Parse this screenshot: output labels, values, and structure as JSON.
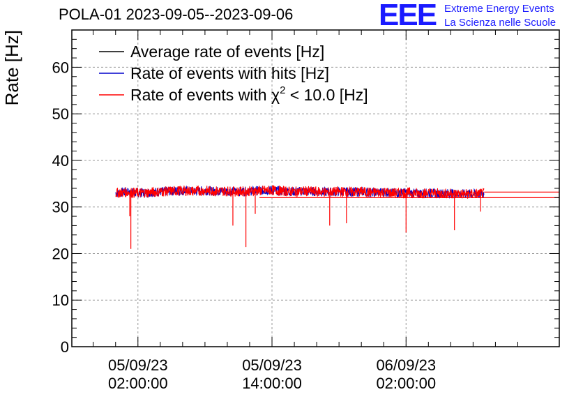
{
  "header": {
    "title": "POLA-01 2023-09-05--2023-09-06",
    "logo": "EEE",
    "logo_line1": "Extreme Energy Events",
    "logo_line2": "La Scienza nelle Scuole"
  },
  "colors": {
    "average": "#000000",
    "hits": "#0000cc",
    "chi2": "#ff0000",
    "brand": "#1a1aff",
    "grid": "#999999"
  },
  "chart_data": {
    "type": "line",
    "ylabel": "Rate [Hz]",
    "xlabel": "",
    "ylim": [
      0,
      68
    ],
    "xlim": [
      "2023-09-04 20:05",
      "2023-09-06 15:43"
    ],
    "grid": true,
    "legend_placement": "top-left",
    "yticks": [
      0,
      10,
      20,
      30,
      40,
      50,
      60
    ],
    "xticks": [
      {
        "time": "2023-09-05 02:00",
        "line1": "05/09/23",
        "line2": "02:00:00"
      },
      {
        "time": "2023-09-05 14:00",
        "line1": "05/09/23",
        "line2": "14:00:00"
      },
      {
        "time": "2023-09-06 02:00",
        "line1": "06/09/23",
        "line2": "02:00:00"
      }
    ],
    "legend": [
      {
        "label": "Average rate of events [Hz]"
      },
      {
        "label": "Rate of events with hits [Hz]"
      },
      {
        "label_pre": "Rate of events with ",
        "label_sym": "χ",
        "label_sup": "2",
        "label_post": " < 10.0 [Hz]"
      }
    ],
    "series": [
      {
        "name": "Rate of events with hits [Hz]",
        "x": [
          "2023-09-05 00:00",
          "2023-09-05 01:00",
          "2023-09-05 02:00",
          "2023-09-05 03:00",
          "2023-09-05 04:00",
          "2023-09-05 05:00",
          "2023-09-05 06:00",
          "2023-09-05 07:00",
          "2023-09-05 08:00",
          "2023-09-05 09:00",
          "2023-09-05 10:00",
          "2023-09-05 11:00",
          "2023-09-05 12:00",
          "2023-09-05 13:00",
          "2023-09-05 14:00",
          "2023-09-05 15:00",
          "2023-09-05 16:00",
          "2023-09-05 17:00",
          "2023-09-05 18:00",
          "2023-09-05 19:00",
          "2023-09-05 20:00",
          "2023-09-05 21:00",
          "2023-09-05 22:00",
          "2023-09-05 23:00",
          "2023-09-06 00:00",
          "2023-09-06 01:00",
          "2023-09-06 02:00",
          "2023-09-06 03:00",
          "2023-09-06 04:00",
          "2023-09-06 05:00",
          "2023-09-06 06:00",
          "2023-09-06 07:00",
          "2023-09-06 08:00",
          "2023-09-06 09:00"
        ],
        "y": [
          33.0,
          33.2,
          33.0,
          33.1,
          33.3,
          33.4,
          33.5,
          33.4,
          33.5,
          33.4,
          33.4,
          33.3,
          33.4,
          33.5,
          33.6,
          33.4,
          33.3,
          33.4,
          33.3,
          33.2,
          33.3,
          33.2,
          33.3,
          33.1,
          33.2,
          33.0,
          33.1,
          32.9,
          33.0,
          32.9,
          32.9,
          32.8,
          32.8,
          32.9
        ]
      },
      {
        "name": "Rate of events with χ2 < 10.0 [Hz]",
        "x": [
          "2023-09-05 00:00",
          "2023-09-05 01:00",
          "2023-09-05 02:00",
          "2023-09-05 03:00",
          "2023-09-05 04:00",
          "2023-09-05 05:00",
          "2023-09-05 06:00",
          "2023-09-05 07:00",
          "2023-09-05 08:00",
          "2023-09-05 09:00",
          "2023-09-05 10:00",
          "2023-09-05 11:00",
          "2023-09-05 12:00",
          "2023-09-05 13:00",
          "2023-09-05 14:00",
          "2023-09-05 15:00",
          "2023-09-05 16:00",
          "2023-09-05 17:00",
          "2023-09-05 18:00",
          "2023-09-05 19:00",
          "2023-09-05 20:00",
          "2023-09-05 21:00",
          "2023-09-05 22:00",
          "2023-09-05 23:00",
          "2023-09-06 00:00",
          "2023-09-06 01:00",
          "2023-09-06 02:00",
          "2023-09-06 03:00",
          "2023-09-06 04:00",
          "2023-09-06 05:00",
          "2023-09-06 06:00",
          "2023-09-06 07:00",
          "2023-09-06 08:00",
          "2023-09-06 09:00"
        ],
        "y": [
          33.0,
          33.2,
          33.0,
          33.1,
          33.3,
          33.4,
          33.5,
          33.4,
          33.5,
          33.4,
          33.4,
          33.3,
          33.4,
          33.5,
          33.6,
          33.4,
          33.3,
          33.4,
          33.3,
          33.2,
          33.3,
          33.2,
          33.3,
          33.1,
          33.2,
          33.0,
          33.1,
          32.9,
          33.0,
          32.9,
          32.9,
          32.8,
          32.8,
          32.9
        ]
      },
      {
        "name": "Rate of events with χ2 < 10.0 [Hz] — dips",
        "x": [
          "2023-09-05 01:16",
          "2023-09-05 01:22",
          "2023-09-05 10:30",
          "2023-09-05 11:40",
          "2023-09-05 12:30",
          "2023-09-05 19:10",
          "2023-09-05 20:40",
          "2023-09-06 02:00",
          "2023-09-06 06:20",
          "2023-09-06 08:40"
        ],
        "y": [
          28.0,
          21.0,
          26.0,
          21.4,
          28.5,
          26.0,
          26.5,
          24.5,
          25.0,
          29.0
        ]
      }
    ]
  }
}
